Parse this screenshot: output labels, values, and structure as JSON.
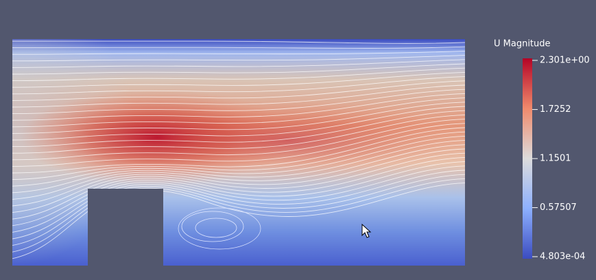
{
  "legend": {
    "title": "U Magnitude",
    "ticks": [
      {
        "value": 2.301,
        "label": "2.301e+00"
      },
      {
        "value": 1.7252,
        "label": "1.7252"
      },
      {
        "value": 1.1501,
        "label": "1.1501"
      },
      {
        "value": 0.57507,
        "label": "0.57507"
      },
      {
        "value": 0.0004803,
        "label": "4.803e-04"
      }
    ]
  }
}
